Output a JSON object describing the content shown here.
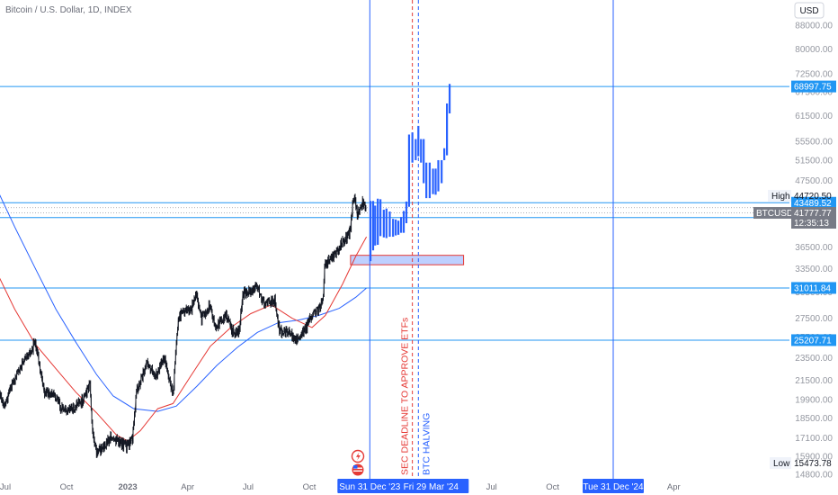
{
  "header": {
    "title": "Bitcoin / U.S. Dollar, 1D, INDEX"
  },
  "currency_button": {
    "label": "USD"
  },
  "colors": {
    "price": "#131722",
    "ma_fast": "#e53935",
    "ma_slow": "#2962ff",
    "hline": "#2196f3",
    "vline": "#2962ff",
    "projection": "#2962ff",
    "sec_line": "#e53935",
    "halving_line": "#2962ff",
    "tag_blue": "#2196f3",
    "tag_gray": "#787b86",
    "zone_fill": "#b3c8ff",
    "zone_border": "#e53935"
  },
  "chart_data": {
    "type": "line",
    "y_axis": {
      "scale": "log",
      "ticks": [
        88000,
        80000,
        72500,
        67500,
        61500,
        55500,
        51500,
        47500,
        43500,
        40000,
        36500,
        33500,
        30500,
        27500,
        25500,
        23500,
        21500,
        19900,
        18500,
        17100,
        15900,
        14800
      ],
      "tick_labels": [
        "88000.00",
        "80000.00",
        "72500.00",
        "67500.00",
        "61500.00",
        "55500.00",
        "51500.00",
        "47500.00",
        "43500.00",
        "40000.00",
        "36500.00",
        "33500.00",
        "30500.00",
        "27500.00",
        "25500.00",
        "23500.00",
        "21500.00",
        "19900.00",
        "18500.00",
        "17100.00",
        "15900.00",
        "14800.00"
      ]
    },
    "x_axis": {
      "ticks": [
        "Jul",
        "Oct",
        "2023",
        "Apr",
        "Jul",
        "Oct",
        "Jul",
        "Oct",
        "Apr"
      ],
      "tick_times": [
        "2022-07-01",
        "2022-10-01",
        "2023-01-01",
        "2023-04-01",
        "2023-07-01",
        "2023-10-01",
        "2024-07-01",
        "2024-10-01",
        "2025-04-01"
      ],
      "bold": [
        "2023"
      ]
    },
    "price_series": {
      "name": "",
      "points": [
        [
          "2022-06-18",
          20500
        ],
        [
          "2022-07-01",
          19500
        ],
        [
          "2022-07-10",
          21000
        ],
        [
          "2022-07-25",
          22800
        ],
        [
          "2022-08-08",
          24000
        ],
        [
          "2022-08-15",
          25100
        ],
        [
          "2022-08-28",
          20500
        ],
        [
          "2022-09-08",
          20400
        ],
        [
          "2022-09-15",
          20000
        ],
        [
          "2022-09-25",
          19100
        ],
        [
          "2022-10-10",
          19200
        ],
        [
          "2022-10-25",
          19800
        ],
        [
          "2022-11-05",
          21200
        ],
        [
          "2022-11-09",
          17600
        ],
        [
          "2022-11-15",
          16200
        ],
        [
          "2022-11-25",
          16400
        ],
        [
          "2022-12-05",
          17100
        ],
        [
          "2022-12-20",
          16800
        ],
        [
          "2022-12-31",
          16550
        ],
        [
          "2023-01-08",
          17000
        ],
        [
          "2023-01-14",
          20500
        ],
        [
          "2023-01-30",
          23000
        ],
        [
          "2023-02-12",
          21800
        ],
        [
          "2023-02-25",
          23500
        ],
        [
          "2023-03-10",
          20200
        ],
        [
          "2023-03-18",
          27500
        ],
        [
          "2023-03-30",
          28500
        ],
        [
          "2023-04-05",
          28200
        ],
        [
          "2023-04-14",
          30200
        ],
        [
          "2023-04-22",
          27500
        ],
        [
          "2023-05-05",
          29000
        ],
        [
          "2023-05-12",
          26500
        ],
        [
          "2023-05-28",
          27800
        ],
        [
          "2023-06-10",
          25800
        ],
        [
          "2023-06-18",
          26400
        ],
        [
          "2023-06-23",
          30300
        ],
        [
          "2023-07-06",
          30500
        ],
        [
          "2023-07-13",
          31300
        ],
        [
          "2023-07-24",
          29300
        ],
        [
          "2023-08-10",
          29400
        ],
        [
          "2023-08-17",
          26200
        ],
        [
          "2023-09-01",
          25900
        ],
        [
          "2023-09-11",
          25200
        ],
        [
          "2023-09-25",
          26300
        ],
        [
          "2023-10-02",
          27500
        ],
        [
          "2023-10-16",
          28500
        ],
        [
          "2023-10-22",
          30000
        ],
        [
          "2023-10-24",
          33900
        ],
        [
          "2023-11-08",
          35300
        ],
        [
          "2023-11-20",
          37200
        ],
        [
          "2023-12-01",
          38700
        ],
        [
          "2023-12-05",
          43000
        ],
        [
          "2023-12-08",
          44200
        ],
        [
          "2023-12-12",
          41300
        ],
        [
          "2023-12-20",
          43600
        ],
        [
          "2023-12-26",
          42500
        ]
      ]
    },
    "ma_fast": {
      "name": "",
      "points": [
        [
          "2022-06-18",
          33000
        ],
        [
          "2022-07-15",
          28500
        ],
        [
          "2022-08-15",
          24800
        ],
        [
          "2022-09-15",
          22500
        ],
        [
          "2022-10-15",
          20500
        ],
        [
          "2022-11-15",
          18900
        ],
        [
          "2022-12-15",
          17300
        ],
        [
          "2023-01-01",
          16900
        ],
        [
          "2023-01-20",
          17600
        ],
        [
          "2023-02-15",
          19200
        ],
        [
          "2023-03-10",
          19600
        ],
        [
          "2023-04-05",
          21800
        ],
        [
          "2023-05-05",
          24600
        ],
        [
          "2023-06-05",
          26500
        ],
        [
          "2023-07-05",
          28000
        ],
        [
          "2023-08-05",
          29000
        ],
        [
          "2023-09-05",
          27500
        ],
        [
          "2023-10-05",
          26500
        ],
        [
          "2023-10-25",
          27800
        ],
        [
          "2023-11-20",
          31500
        ],
        [
          "2023-12-10",
          35200
        ],
        [
          "2023-12-26",
          38000
        ]
      ]
    },
    "ma_slow": {
      "name": "",
      "points": [
        [
          "2022-06-18",
          46000
        ],
        [
          "2022-07-15",
          39500
        ],
        [
          "2022-08-15",
          33500
        ],
        [
          "2022-09-15",
          28500
        ],
        [
          "2022-10-15",
          25000
        ],
        [
          "2022-11-15",
          22000
        ],
        [
          "2022-12-10",
          20200
        ],
        [
          "2023-01-10",
          19200
        ],
        [
          "2023-02-15",
          19000
        ],
        [
          "2023-03-15",
          19400
        ],
        [
          "2023-04-15",
          21000
        ],
        [
          "2023-05-15",
          22800
        ],
        [
          "2023-06-15",
          24500
        ],
        [
          "2023-07-15",
          26000
        ],
        [
          "2023-08-15",
          27000
        ],
        [
          "2023-09-15",
          27300
        ],
        [
          "2023-10-15",
          27800
        ],
        [
          "2023-11-15",
          28600
        ],
        [
          "2023-12-10",
          29900
        ],
        [
          "2023-12-26",
          31000
        ]
      ]
    },
    "projection_bars": [
      {
        "t": "2024-01-01",
        "high": 43800,
        "low": 34500
      },
      {
        "t": "2024-01-05",
        "high": 43800,
        "low": 36000
      },
      {
        "t": "2024-01-08",
        "high": 43000,
        "low": 36700
      },
      {
        "t": "2024-01-12",
        "high": 44200,
        "low": 36800
      },
      {
        "t": "2024-01-16",
        "high": 44100,
        "low": 38100
      },
      {
        "t": "2024-01-21",
        "high": 42300,
        "low": 37900
      },
      {
        "t": "2024-01-25",
        "high": 42500,
        "low": 37800
      },
      {
        "t": "2024-01-30",
        "high": 42000,
        "low": 38000
      },
      {
        "t": "2024-02-04",
        "high": 40800,
        "low": 38000
      },
      {
        "t": "2024-02-08",
        "high": 40700,
        "low": 38200
      },
      {
        "t": "2024-02-12",
        "high": 40500,
        "low": 38300
      },
      {
        "t": "2024-02-16",
        "high": 41100,
        "low": 38600
      },
      {
        "t": "2024-02-20",
        "high": 42100,
        "low": 38600
      },
      {
        "t": "2024-02-24",
        "high": 43700,
        "low": 40100
      },
      {
        "t": "2024-02-28",
        "high": 57000,
        "low": 42800
      },
      {
        "t": "2024-03-04",
        "high": 57500,
        "low": 51000
      },
      {
        "t": "2024-03-09",
        "high": 56000,
        "low": 51500
      },
      {
        "t": "2024-03-13",
        "high": 59000,
        "low": 52300
      },
      {
        "t": "2024-03-17",
        "high": 56000,
        "low": 51000
      },
      {
        "t": "2024-03-21",
        "high": 56000,
        "low": 47000
      },
      {
        "t": "2024-03-25",
        "high": 51000,
        "low": 44300
      },
      {
        "t": "2024-03-30",
        "high": 51000,
        "low": 44300
      },
      {
        "t": "2024-04-04",
        "high": 49800,
        "low": 45000
      },
      {
        "t": "2024-04-08",
        "high": 49800,
        "low": 44900
      },
      {
        "t": "2024-04-12",
        "high": 51500,
        "low": 45500
      },
      {
        "t": "2024-04-17",
        "high": 51500,
        "low": 47000
      },
      {
        "t": "2024-04-21",
        "high": 54000,
        "low": 51500
      },
      {
        "t": "2024-04-25",
        "high": 64500,
        "low": 52500
      },
      {
        "t": "2024-04-29",
        "high": 69700,
        "low": 62000
      }
    ],
    "horizontal_lines": [
      {
        "value": 68997.75,
        "label": "68997.75"
      },
      {
        "value": 43489.52,
        "label": "43489.52"
      },
      {
        "value": 41002.87,
        "label": "41002.87"
      },
      {
        "value": 31011.84,
        "label": "31011.84"
      },
      {
        "value": 25207.71,
        "label": "25207.71"
      }
    ],
    "dotted_price_lines": [
      41777.77,
      42650
    ],
    "zone": {
      "t_start": "2023-12-02",
      "t_end": "2024-05-20",
      "top": 35300,
      "bottom": 34000
    },
    "vertical_lines": [
      {
        "t": "2023-12-31",
        "label": "Sun 31 Dec '23",
        "style": "solid"
      },
      {
        "t": "2024-03-29",
        "label": "Fri 29 Mar '24",
        "style": "solid-offscreen"
      },
      {
        "t": "2024-12-31",
        "label": "Tue 31 Dec '24",
        "style": "solid"
      }
    ],
    "sec_deadline": {
      "t": "2024-03-04",
      "label": "SEC DEADLINE TO APPROVE ETFs"
    },
    "btc_halving": {
      "t": "2024-03-13",
      "label": "BTC HALVING"
    },
    "high_marker": {
      "label": "High",
      "value": 44720.5,
      "value_label": "44720.50"
    },
    "low_marker": {
      "label": "Low",
      "value": 15473.78,
      "value_label": "15473.78"
    },
    "current_price": {
      "symbol": "BTCUSD",
      "value": 41777.77,
      "value_label": "41777.77",
      "countdown": "12:35:13"
    }
  }
}
